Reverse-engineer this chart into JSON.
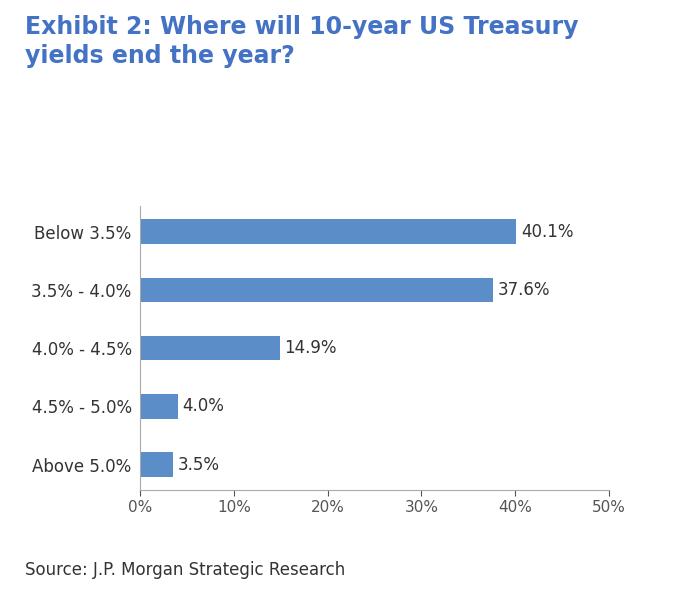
{
  "title_line1": "Exhibit 2: Where will 10-year US Treasury",
  "title_line2": "yields end the year?",
  "title_color": "#4472c4",
  "title_fontsize": 17,
  "categories": [
    "Above 5.0%",
    "4.5% - 5.0%",
    "4.0% - 4.5%",
    "3.5% - 4.0%",
    "Below 3.5%"
  ],
  "values": [
    3.5,
    4.0,
    14.9,
    37.6,
    40.1
  ],
  "bar_color": "#5b8dc8",
  "bar_labels": [
    "3.5%",
    "4.0%",
    "14.9%",
    "37.6%",
    "40.1%"
  ],
  "xlim": [
    0,
    50
  ],
  "xtick_values": [
    0,
    10,
    20,
    30,
    40,
    50
  ],
  "xtick_labels": [
    "0%",
    "10%",
    "20%",
    "30%",
    "40%",
    "50%"
  ],
  "source_text": "Source: J.P. Morgan Strategic Research",
  "source_fontsize": 12,
  "background_color": "#ffffff",
  "bar_label_fontsize": 12,
  "ytick_fontsize": 12,
  "xtick_fontsize": 11
}
